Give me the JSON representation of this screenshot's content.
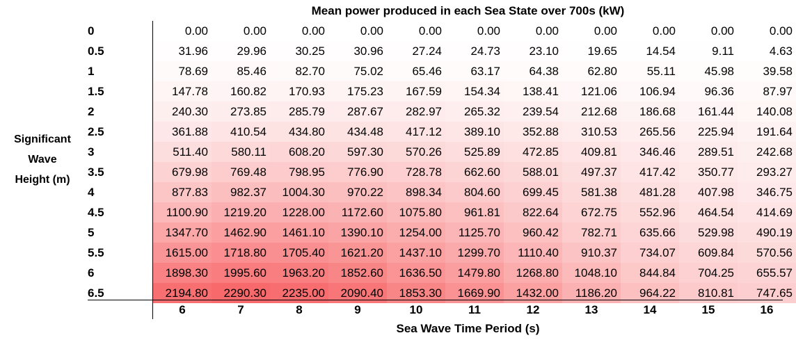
{
  "chart_data": {
    "type": "heatmap",
    "title": "Mean power produced in each Sea State over 700s (kW)",
    "xlabel": "Sea Wave Time Period (s)",
    "ylabel": [
      "Significant",
      "Wave",
      "Height (m)"
    ],
    "x": [
      "6",
      "7",
      "8",
      "9",
      "10",
      "11",
      "12",
      "13",
      "14",
      "15",
      "16"
    ],
    "y": [
      "0",
      "0.5",
      "1",
      "1.5",
      "2",
      "2.5",
      "3",
      "3.5",
      "4",
      "4.5",
      "5",
      "5.5",
      "6",
      "6.5"
    ],
    "values": [
      [
        "0.00",
        "0.00",
        "0.00",
        "0.00",
        "0.00",
        "0.00",
        "0.00",
        "0.00",
        "0.00",
        "0.00",
        "0.00"
      ],
      [
        "31.96",
        "29.96",
        "30.25",
        "30.96",
        "27.24",
        "24.73",
        "23.10",
        "19.65",
        "14.54",
        "9.11",
        "4.63"
      ],
      [
        "78.69",
        "85.46",
        "82.70",
        "75.02",
        "65.46",
        "63.17",
        "64.38",
        "62.80",
        "55.11",
        "45.98",
        "39.58"
      ],
      [
        "147.78",
        "160.82",
        "170.93",
        "175.23",
        "167.59",
        "154.34",
        "138.41",
        "121.06",
        "106.94",
        "96.36",
        "87.97"
      ],
      [
        "240.30",
        "273.85",
        "285.79",
        "287.67",
        "282.97",
        "265.32",
        "239.54",
        "212.68",
        "186.68",
        "161.44",
        "140.08"
      ],
      [
        "361.88",
        "410.54",
        "434.80",
        "434.48",
        "417.12",
        "389.10",
        "352.88",
        "310.53",
        "265.56",
        "225.94",
        "191.64"
      ],
      [
        "511.40",
        "580.11",
        "608.20",
        "597.30",
        "570.26",
        "525.89",
        "472.85",
        "409.81",
        "346.46",
        "289.51",
        "242.68"
      ],
      [
        "679.98",
        "769.48",
        "798.95",
        "776.90",
        "728.78",
        "662.60",
        "588.01",
        "497.37",
        "417.42",
        "350.77",
        "293.27"
      ],
      [
        "877.83",
        "982.37",
        "1004.30",
        "970.22",
        "898.34",
        "804.60",
        "699.45",
        "581.38",
        "481.28",
        "407.98",
        "346.75"
      ],
      [
        "1100.90",
        "1219.20",
        "1228.00",
        "1172.60",
        "1075.80",
        "961.81",
        "822.64",
        "672.75",
        "552.96",
        "464.54",
        "414.69"
      ],
      [
        "1347.70",
        "1462.90",
        "1461.10",
        "1390.10",
        "1254.00",
        "1125.70",
        "960.42",
        "782.71",
        "635.66",
        "529.98",
        "490.19"
      ],
      [
        "1615.00",
        "1718.80",
        "1705.40",
        "1621.20",
        "1437.10",
        "1299.70",
        "1110.40",
        "910.37",
        "734.07",
        "609.84",
        "570.56"
      ],
      [
        "1898.30",
        "1995.60",
        "1963.20",
        "1852.60",
        "1636.50",
        "1479.80",
        "1268.80",
        "1048.10",
        "844.84",
        "704.25",
        "655.57"
      ],
      [
        "2194.80",
        "2290.30",
        "2235.00",
        "2090.40",
        "1853.30",
        "1669.90",
        "1432.00",
        "1186.20",
        "964.22",
        "810.81",
        "747.65"
      ]
    ],
    "color_scale": {
      "low": "#ffffff",
      "high": "#f8696b"
    },
    "grid": false
  }
}
